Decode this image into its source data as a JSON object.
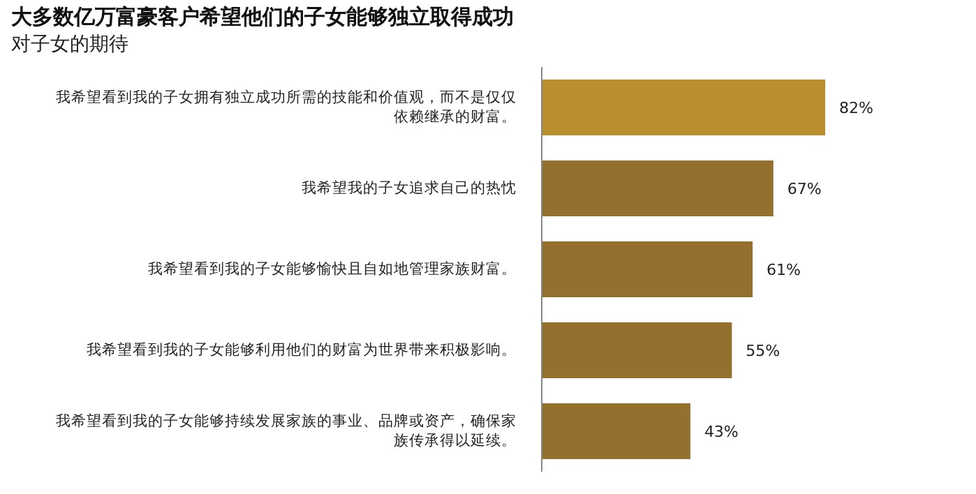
{
  "chart_data": {
    "type": "bar",
    "orientation": "horizontal",
    "title": "大多数亿万富豪客户希望他们的子女能够独立取得成功",
    "subtitle": "对子女的期待",
    "categories": [
      "我希望看到我的子女拥有独立成功所需的技能和价值观，而不是仅仅依赖继承的财富。",
      "我希望我的子女追求自己的热忱",
      "我希望看到我的子女能够愉快且自如地管理家族财富。",
      "我希望看到我的子女能够利用他们的财富为世界带来积极影响。",
      "我希望看到我的子女能够持续发展家族的事业、品牌或资产，确保家族传承得以延续。"
    ],
    "values": [
      82,
      67,
      61,
      55,
      43
    ],
    "colors": [
      "#b98f2e",
      "#93702d",
      "#93702d",
      "#93702d",
      "#93702d"
    ],
    "value_labels": [
      "82%",
      "67%",
      "61%",
      "55%",
      "43%"
    ]
  }
}
